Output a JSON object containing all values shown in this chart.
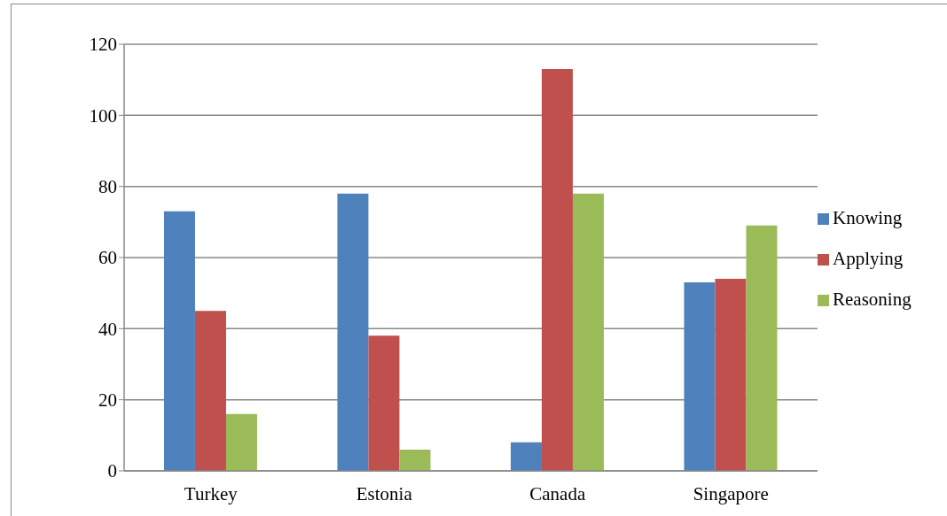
{
  "chart_data": {
    "type": "bar",
    "categories": [
      "Turkey",
      "Estonia",
      "Canada",
      "Singapore"
    ],
    "series": [
      {
        "name": "Knowing",
        "color": "#4f81bd",
        "values": [
          73,
          78,
          8,
          53
        ]
      },
      {
        "name": "Applying",
        "color": "#c0504d",
        "values": [
          45,
          38,
          113,
          54
        ]
      },
      {
        "name": "Reasoning",
        "color": "#9bbb59",
        "values": [
          16,
          6,
          78,
          69
        ]
      }
    ],
    "ylim": [
      0,
      120
    ],
    "yticks": [
      0,
      20,
      40,
      60,
      80,
      100,
      120
    ],
    "grid": "y",
    "legend": "right"
  }
}
